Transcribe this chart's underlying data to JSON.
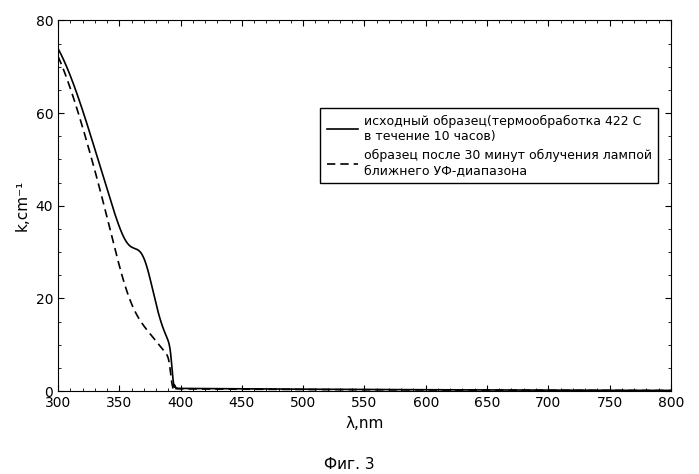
{
  "title": "",
  "xlabel": "λ,nm",
  "ylabel": "k,cm⁻¹",
  "xlim": [
    300,
    800
  ],
  "ylim": [
    0,
    80
  ],
  "xticks": [
    300,
    350,
    400,
    450,
    500,
    550,
    600,
    650,
    700,
    750,
    800
  ],
  "yticks": [
    0,
    20,
    40,
    60,
    80
  ],
  "caption": "Фиг. 3",
  "legend_solid": "исходный образец(термообработка 422 С\nв течение 10 часов)",
  "legend_dashed": "образец после 30 минут облучения лампой\nближнего УФ-диапазона",
  "background_color": "#ffffff",
  "line_color": "#000000",
  "fontsize_labels": 11,
  "fontsize_ticks": 10,
  "fontsize_legend": 9,
  "fontsize_caption": 11
}
